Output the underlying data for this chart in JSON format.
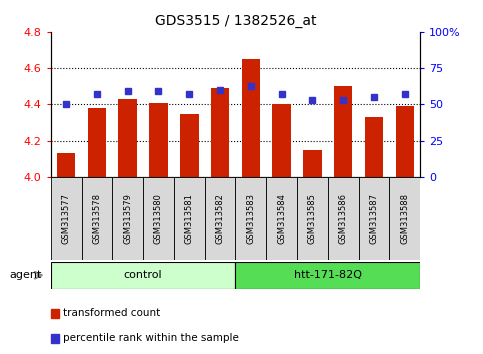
{
  "title": "GDS3515 / 1382526_at",
  "samples": [
    "GSM313577",
    "GSM313578",
    "GSM313579",
    "GSM313580",
    "GSM313581",
    "GSM313582",
    "GSM313583",
    "GSM313584",
    "GSM313585",
    "GSM313586",
    "GSM313587",
    "GSM313588"
  ],
  "bar_values": [
    4.13,
    4.38,
    4.43,
    4.41,
    4.35,
    4.49,
    4.65,
    4.4,
    4.15,
    4.5,
    4.33,
    4.39
  ],
  "percentile_values": [
    50,
    57,
    59,
    59,
    57,
    60,
    63,
    57,
    53,
    53,
    55,
    57
  ],
  "bar_color": "#cc2200",
  "percentile_color": "#3333cc",
  "ylim": [
    4.0,
    4.8
  ],
  "y2lim": [
    0,
    100
  ],
  "yticks": [
    4.0,
    4.2,
    4.4,
    4.6,
    4.8
  ],
  "y2ticks": [
    0,
    25,
    50,
    75,
    100
  ],
  "y2ticklabels": [
    "0",
    "25",
    "50",
    "75",
    "100%"
  ],
  "grid_values": [
    4.2,
    4.4,
    4.6
  ],
  "control_label": "control",
  "treatment_label": "htt-171-82Q",
  "agent_label": "agent",
  "control_color": "#ccffcc",
  "treatment_color": "#55dd55",
  "bar_width": 0.6,
  "legend_bar_label": "transformed count",
  "legend_percentile_label": "percentile rank within the sample"
}
